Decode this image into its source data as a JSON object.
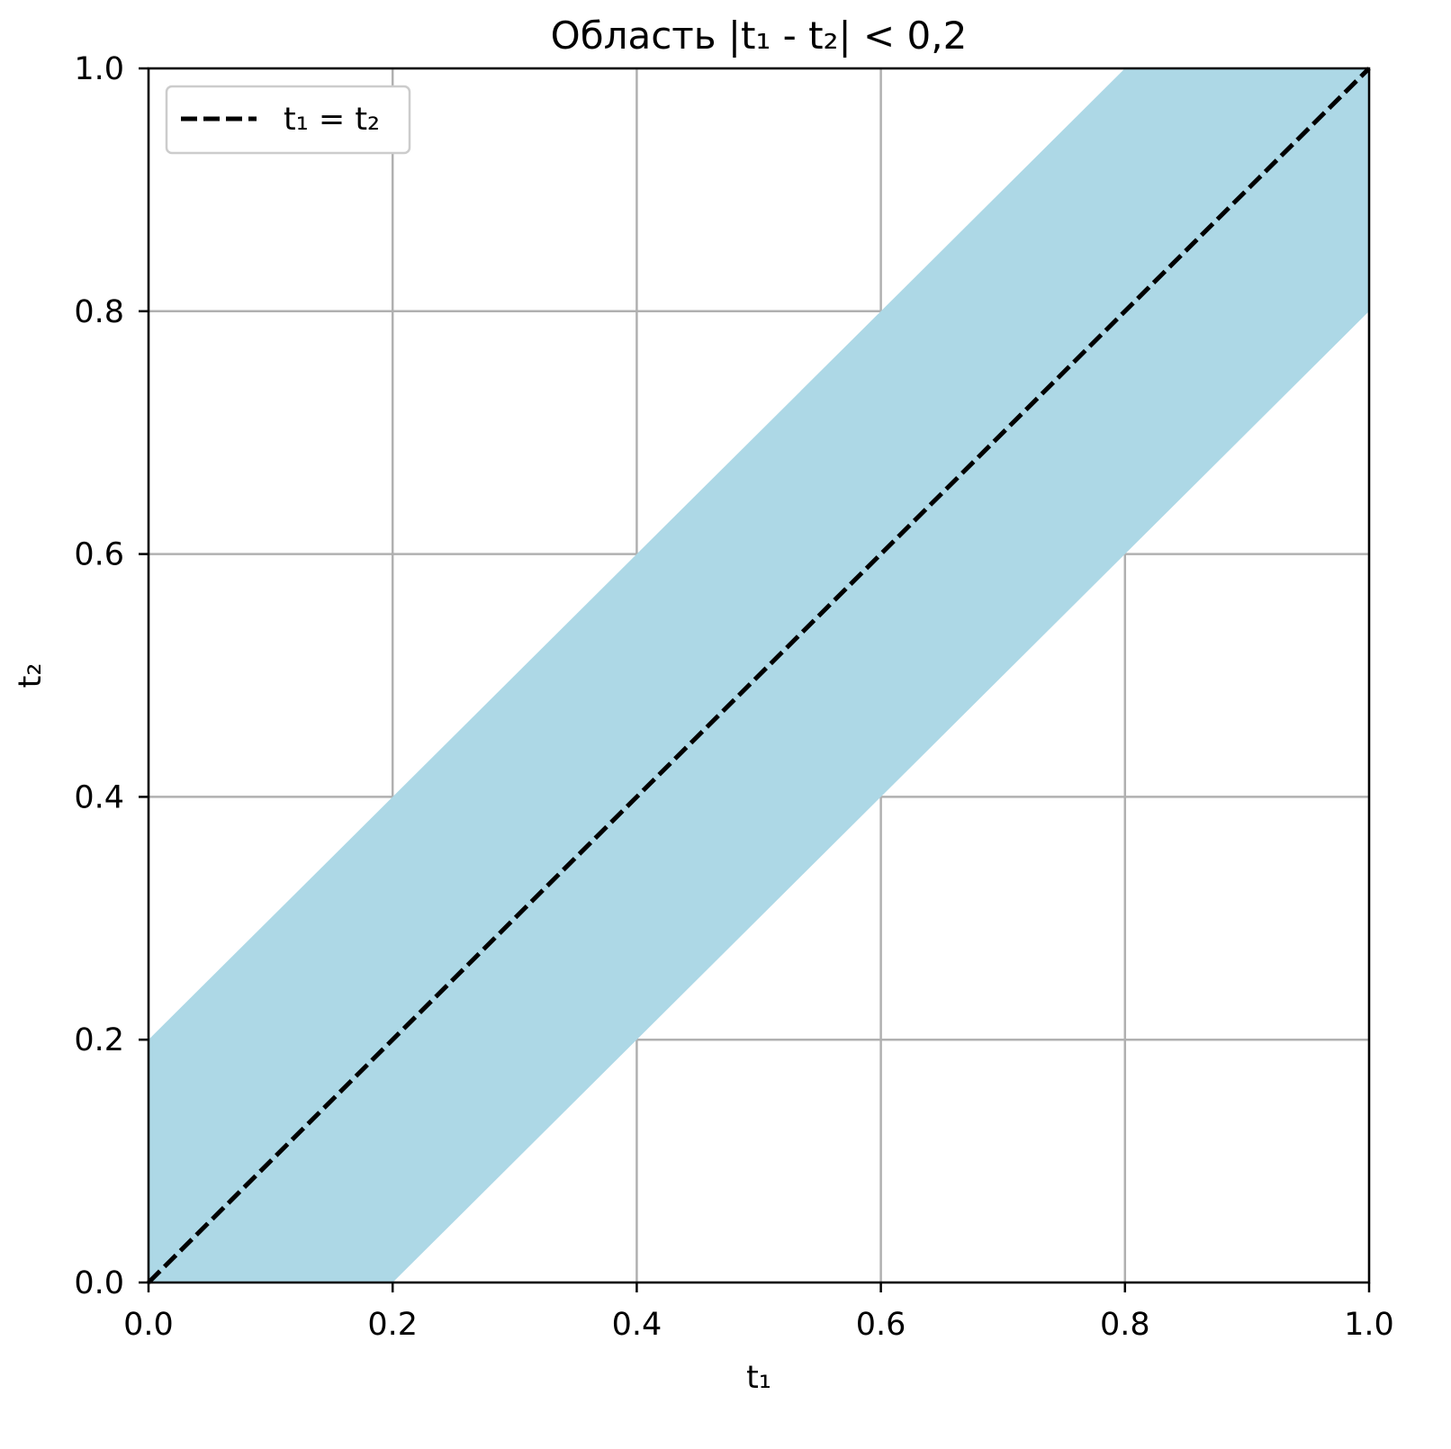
{
  "chart_data": {
    "type": "area",
    "title": "Область |t₁ - t₂| < 0,2",
    "xlabel": "t₁",
    "ylabel": "t₂",
    "xlim": [
      0.0,
      1.0
    ],
    "ylim": [
      0.0,
      1.0
    ],
    "x_ticks": [
      "0.0",
      "0.2",
      "0.4",
      "0.6",
      "0.8",
      "1.0"
    ],
    "y_ticks": [
      "0.0",
      "0.2",
      "0.4",
      "0.6",
      "0.8",
      "1.0"
    ],
    "grid": true,
    "legend_position": "top-left",
    "region": {
      "condition": "|t1 - t2| < 0.2",
      "color": "#add8e6",
      "polygon": [
        [
          0.0,
          0.0
        ],
        [
          0.2,
          0.0
        ],
        [
          1.0,
          0.8
        ],
        [
          1.0,
          1.0
        ],
        [
          0.8,
          1.0
        ],
        [
          0.0,
          0.2
        ]
      ]
    },
    "series": [
      {
        "name": "t₁ = t₂",
        "type": "line",
        "style": "dashed",
        "color": "#000000",
        "x": [
          0.0,
          1.0
        ],
        "y": [
          0.0,
          1.0
        ]
      }
    ]
  }
}
